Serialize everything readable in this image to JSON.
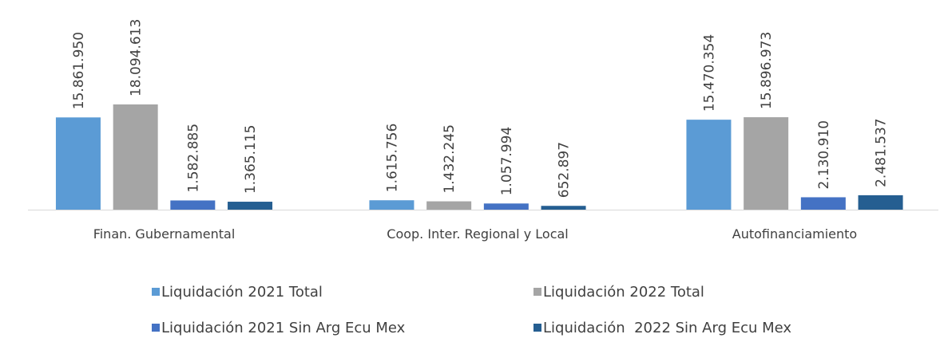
{
  "chart_data": {
    "type": "bar",
    "categories": [
      "Finan. Gubernamental",
      "Coop. Inter. Regional y Local",
      "Autofinanciamiento"
    ],
    "series": [
      {
        "name": "Liquidación 2021 Total",
        "color": "#5b9bd5",
        "values": [
          15861950,
          1615756,
          15470354
        ],
        "value_labels": [
          "15.861.950",
          "1.615.756",
          "15.470.354"
        ]
      },
      {
        "name": "Liquidación 2022 Total",
        "color": "#a5a5a5",
        "values": [
          18094613,
          1432245,
          15896973
        ],
        "value_labels": [
          "18.094.613",
          "1.432.245",
          "15.896.973"
        ]
      },
      {
        "name": "Liquidación 2021 Sin Arg Ecu Mex",
        "color": "#4472c4",
        "values": [
          1582885,
          1057994,
          2130910
        ],
        "value_labels": [
          "1.582.885",
          "1.057.994",
          "2.130.910"
        ]
      },
      {
        "name": "Liquidación  2022 Sin Arg Ecu Mex",
        "color": "#255e91",
        "values": [
          1365115,
          652897,
          2481537
        ],
        "value_labels": [
          "1.365.115",
          "652.897",
          "2.481.537"
        ]
      }
    ]
  }
}
